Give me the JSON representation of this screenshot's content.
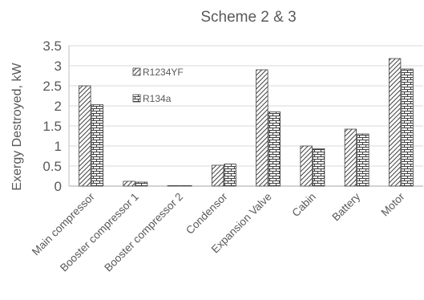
{
  "chart_data": {
    "type": "bar",
    "title": "Scheme 2 & 3",
    "xlabel": "",
    "ylabel": "Exergy Destroyed, kW",
    "ylim": [
      0,
      3.5
    ],
    "yticks": [
      "0",
      "0.5",
      "1",
      "1.5",
      "2",
      "2.5",
      "3",
      "3.5"
    ],
    "grid": true,
    "legend_position": "upper-left",
    "categories": [
      "Main compressor",
      "Booster compressor 1",
      "Booster compressor 2",
      "Condensor",
      "Expansion Valve",
      "Cabin",
      "Battery",
      "Motor"
    ],
    "series": [
      {
        "name": "R1234YF",
        "pattern": "diagonal-hatch",
        "values": [
          2.5,
          0.12,
          0.01,
          0.52,
          2.9,
          1.0,
          1.42,
          3.18
        ]
      },
      {
        "name": "R134a",
        "pattern": "brick",
        "values": [
          2.03,
          0.1,
          0.01,
          0.55,
          1.85,
          0.93,
          1.3,
          2.92
        ]
      }
    ]
  }
}
